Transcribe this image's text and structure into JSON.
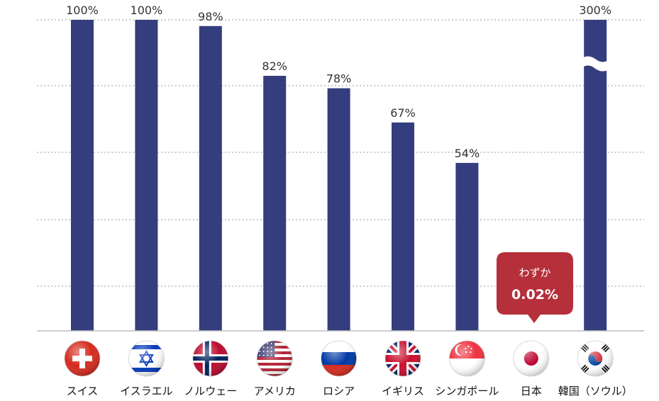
{
  "chart_data": {
    "type": "bar",
    "title": "",
    "xlabel": "",
    "ylabel": "",
    "ylim": [
      0,
      100
    ],
    "grid": true,
    "categories": [
      "スイス",
      "イスラエル",
      "ノルウェー",
      "アメリカ",
      "ロシア",
      "イギリス",
      "シンガポール",
      "日本",
      "韓国（ソウル）"
    ],
    "values": [
      100,
      100,
      98,
      82,
      78,
      67,
      54,
      0.02,
      300
    ],
    "value_labels": [
      "100%",
      "100%",
      "98%",
      "82%",
      "78%",
      "67%",
      "54%",
      "",
      "300%"
    ],
    "axis_break_on": "韓国（ソウル）",
    "flags": [
      "switzerland-flag",
      "israel-flag",
      "norway-flag",
      "usa-flag",
      "russia-flag",
      "uk-flag",
      "singapore-flag",
      "japan-flag",
      "korea-flag"
    ],
    "bar_color": "#343d7e",
    "annotation": {
      "category": "日本",
      "line1": "わずか",
      "line2": "0.02%",
      "color": "#b5303a"
    }
  }
}
